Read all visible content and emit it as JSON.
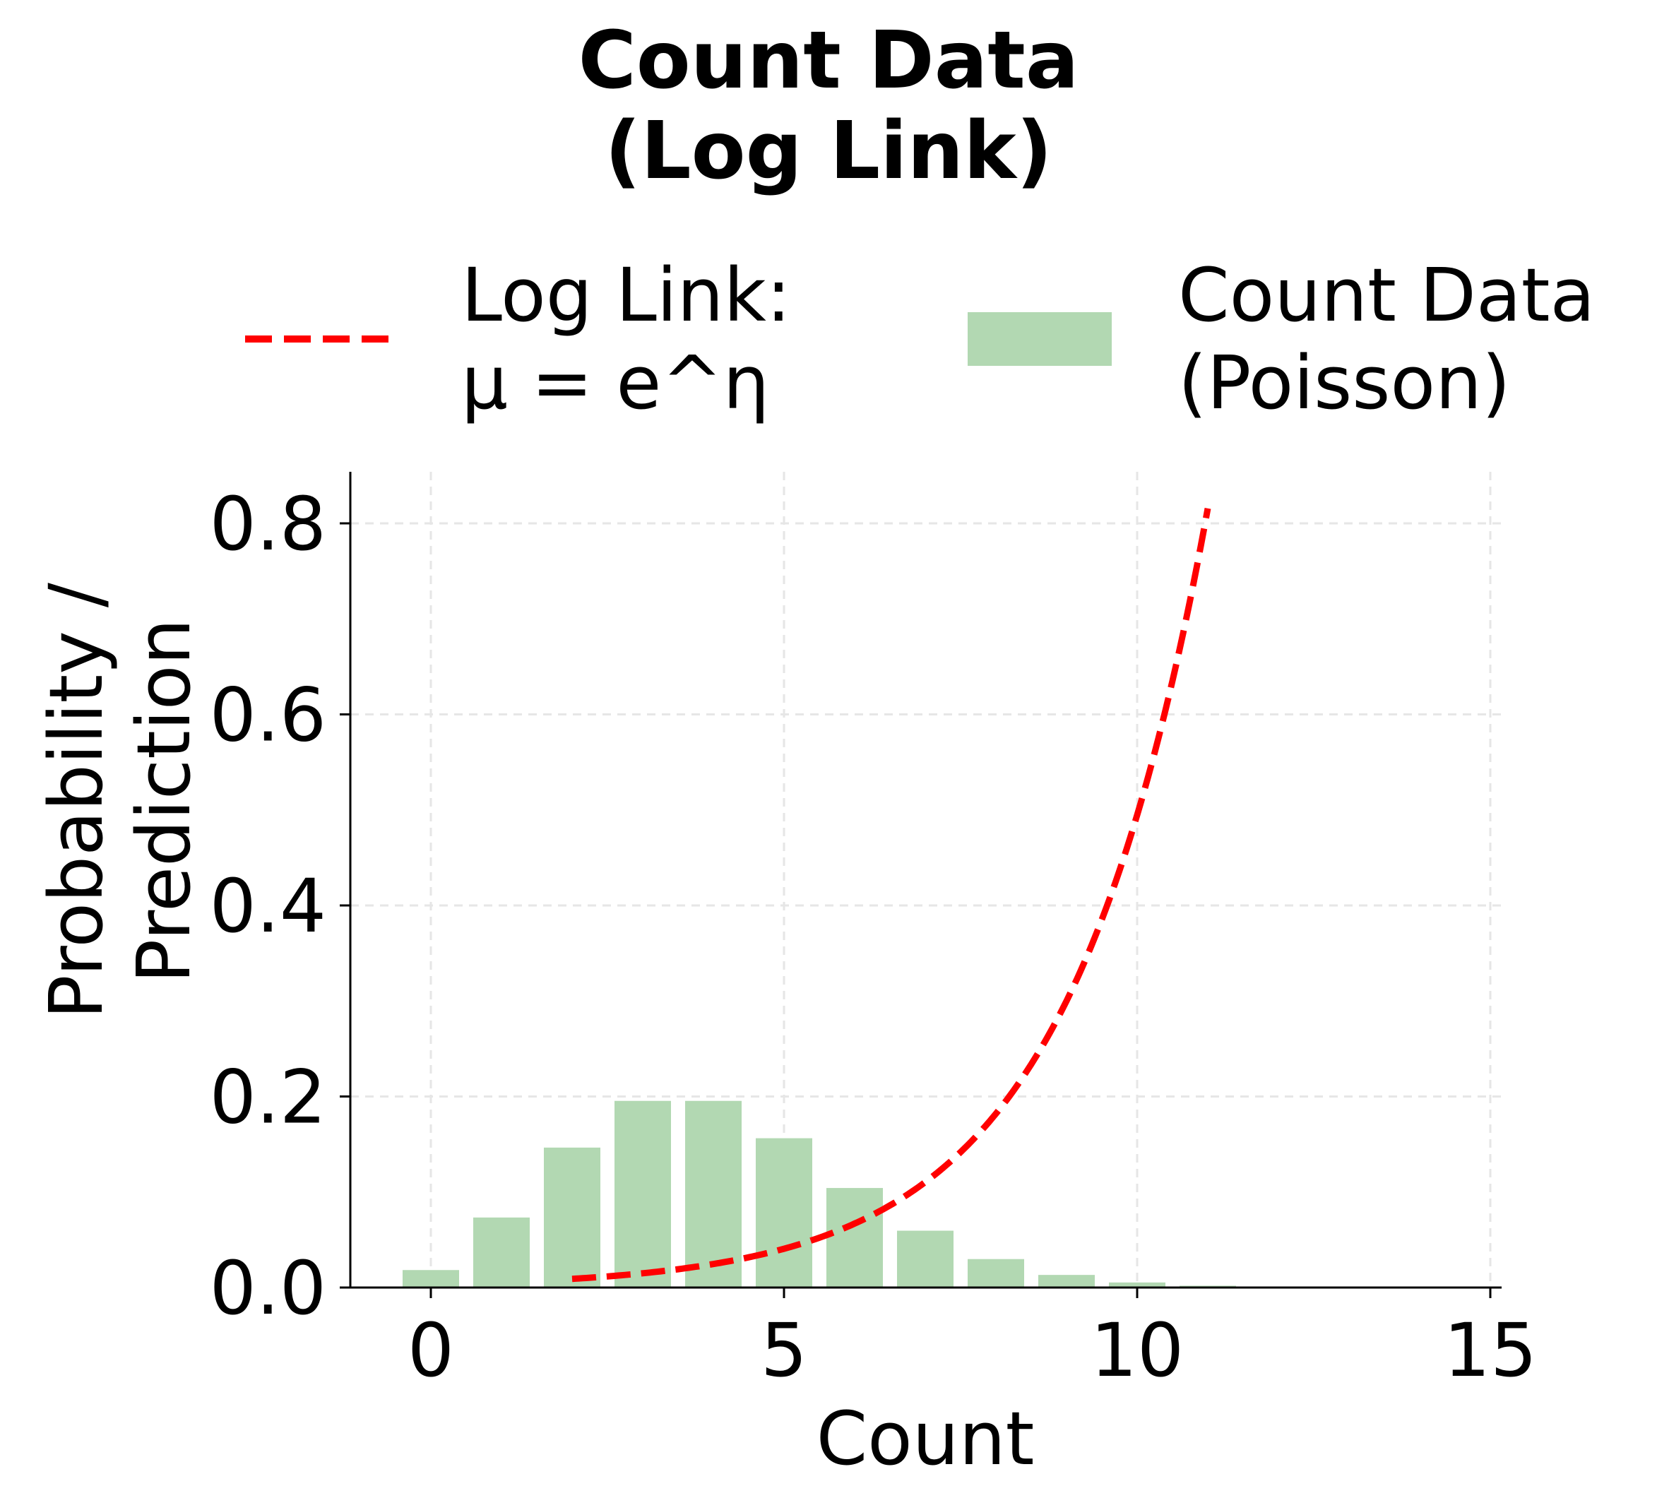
{
  "title": {
    "line1": "Count Data",
    "line2": "(Log Link)"
  },
  "legend": {
    "items": [
      {
        "label": "Log Link:\nμ = e^η",
        "marker": "dashed-line",
        "color": "#ff0000"
      },
      {
        "label": "Count Data\n(Poisson)",
        "marker": "bar-patch",
        "color": "#b2d8b2"
      }
    ]
  },
  "axes": {
    "xlabel": "Count",
    "ylabel": "Probability /\nPrediction",
    "xticks": [
      "0",
      "5",
      "10",
      "15"
    ],
    "yticks": [
      "0.0",
      "0.2",
      "0.4",
      "0.6",
      "0.8"
    ]
  },
  "colors": {
    "bar": "#b2d8b2",
    "line": "#ff0000",
    "grid": "#e6e6e6",
    "axis": "#000000"
  },
  "chart_data": {
    "type": "bar",
    "title": "Count Data\n(Log Link)",
    "xlabel": "Count",
    "ylabel": "Probability / Prediction",
    "xlim": [
      -1.1,
      15.2
    ],
    "ylim": [
      0,
      0.855
    ],
    "grid": true,
    "legend_position": "top (above axes), 2 columns",
    "categories": [
      0,
      1,
      2,
      3,
      4,
      5,
      6,
      7,
      8,
      9,
      10,
      11,
      12,
      13,
      14,
      15
    ],
    "series": [
      {
        "name": "Count Data (Poisson)",
        "type": "bar",
        "color": "#b2d8b2",
        "x": [
          0,
          1,
          2,
          3,
          4,
          5,
          6,
          7,
          8,
          9,
          10,
          11,
          12,
          13,
          14,
          15
        ],
        "values": [
          0.0183,
          0.0733,
          0.1465,
          0.1954,
          0.1954,
          0.1563,
          0.1042,
          0.0595,
          0.0298,
          0.0132,
          0.0053,
          0.0019,
          0.0006,
          0.0002,
          0.0001,
          0.0
        ]
      },
      {
        "name": "Log Link: μ = e^η",
        "type": "line",
        "style": "dashed",
        "color": "#ff0000",
        "x": [
          2,
          3,
          4,
          5,
          6,
          7,
          8,
          9,
          10,
          11
        ],
        "values": [
          0.0091,
          0.0149,
          0.0246,
          0.0406,
          0.067,
          0.1104,
          0.182,
          0.3,
          0.4947,
          0.8157
        ]
      }
    ]
  }
}
